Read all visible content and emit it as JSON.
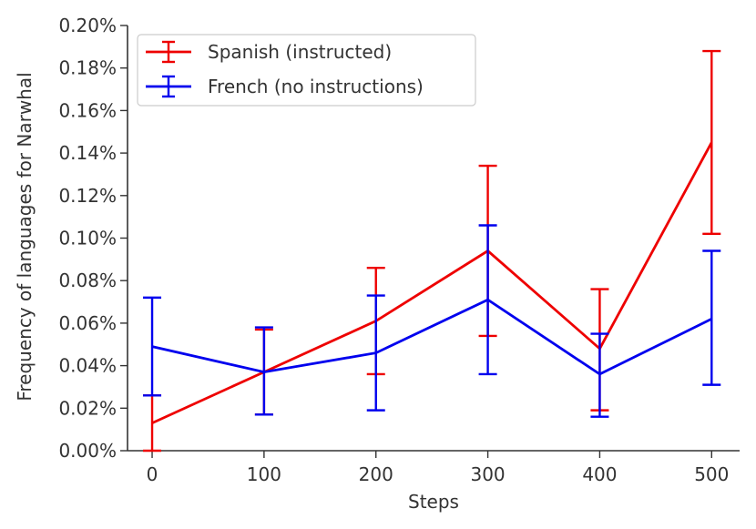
{
  "chart_data": {
    "type": "line",
    "title": "",
    "xlabel": "Steps",
    "ylabel": "Frequency of languages for Narwhal",
    "x": [
      0,
      100,
      200,
      300,
      400,
      500
    ],
    "x_ticks": [
      "0",
      "100",
      "200",
      "300",
      "400",
      "500"
    ],
    "xlim": [
      -22,
      525
    ],
    "ylim": [
      0,
      0.2
    ],
    "y_ticks": [
      "0.00%",
      "0.02%",
      "0.04%",
      "0.06%",
      "0.08%",
      "0.10%",
      "0.12%",
      "0.14%",
      "0.16%",
      "0.18%",
      "0.20%"
    ],
    "y_tick_values": [
      0,
      0.02,
      0.04,
      0.06,
      0.08,
      0.1,
      0.12,
      0.14,
      0.16,
      0.18,
      0.2
    ],
    "grid": false,
    "legend_position": "top-left",
    "series": [
      {
        "name": "Spanish (instructed)",
        "color": "#ee0000",
        "values": [
          0.013,
          0.037,
          0.061,
          0.094,
          0.048,
          0.145
        ],
        "err_low": [
          0.0,
          0.017,
          0.036,
          0.054,
          0.019,
          0.102
        ],
        "err_high": [
          0.026,
          0.057,
          0.086,
          0.134,
          0.076,
          0.188
        ]
      },
      {
        "name": "French (no instructions)",
        "color": "#0000ee",
        "values": [
          0.049,
          0.037,
          0.046,
          0.071,
          0.036,
          0.062
        ],
        "err_low": [
          0.026,
          0.017,
          0.019,
          0.036,
          0.016,
          0.031
        ],
        "err_high": [
          0.072,
          0.058,
          0.073,
          0.106,
          0.055,
          0.094
        ]
      }
    ]
  }
}
